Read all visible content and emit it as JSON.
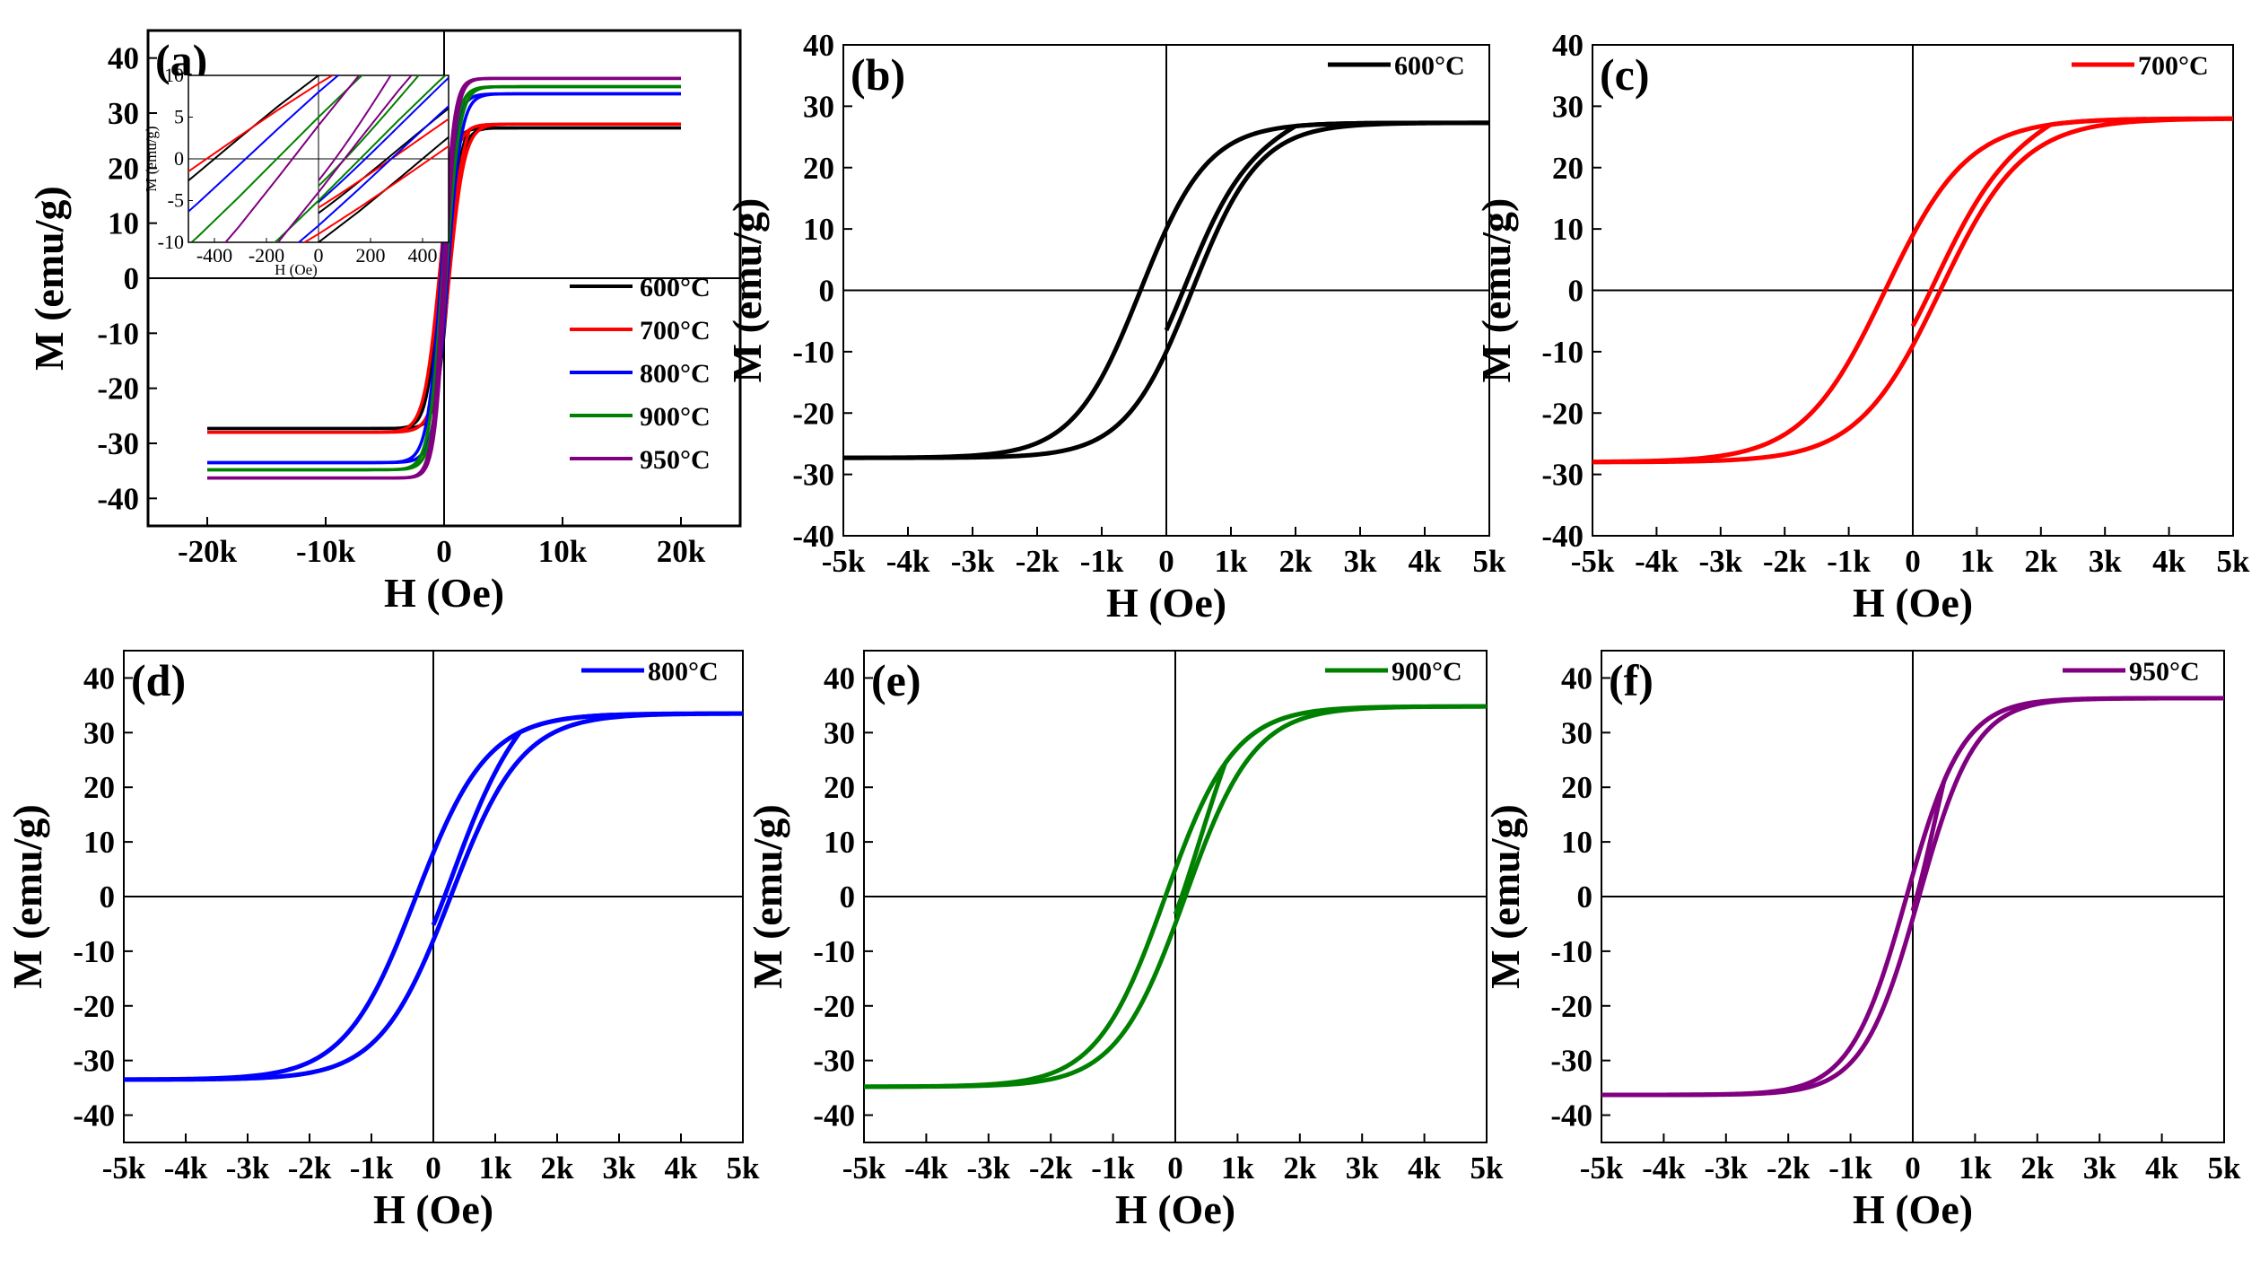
{
  "figure": {
    "panel_labels": [
      "(a)",
      "(b)",
      "(c)",
      "(d)",
      "(e)",
      "(f)"
    ],
    "xlabel": "H (Oe)",
    "ylabel": "M (emu/g)"
  },
  "colors": {
    "600": "#000000",
    "700": "#ff0000",
    "800": "#0000ff",
    "900": "#008000",
    "950": "#800080"
  },
  "chart_data": [
    {
      "panel": "(a)",
      "type": "line",
      "xlabel": "H (Oe)",
      "ylabel": "M (emu/g)",
      "xlim": [
        -25000,
        25000
      ],
      "ylim": [
        -45,
        45
      ],
      "xticks": [
        -20000,
        -10000,
        0,
        10000,
        20000
      ],
      "xtick_labels": [
        "-20k",
        "-10k",
        "0",
        "10k",
        "20k"
      ],
      "yticks": [
        -40,
        -30,
        -20,
        -10,
        0,
        10,
        20,
        30,
        40
      ],
      "ytick_labels": [
        "-40",
        "-30",
        "-20",
        "-10",
        "0",
        "10",
        "20",
        "30",
        "40"
      ],
      "legend_position": "bottom-right",
      "series": [
        {
          "name": "600°C",
          "color": "#000000",
          "Ms": 27.3,
          "Hc": 400,
          "Mr": 10,
          "hmax": 20000
        },
        {
          "name": "700°C",
          "color": "#ff0000",
          "Ms": 28.0,
          "Hc": 430,
          "Mr": 9,
          "hmax": 20000
        },
        {
          "name": "800°C",
          "color": "#0000ff",
          "Ms": 33.5,
          "Hc": 280,
          "Mr": 8,
          "hmax": 20000
        },
        {
          "name": "900°C",
          "color": "#008000",
          "Ms": 34.8,
          "Hc": 160,
          "Mr": 5,
          "hmax": 20000
        },
        {
          "name": "950°C",
          "color": "#800080",
          "Ms": 36.3,
          "Hc": 100,
          "Mr": 4,
          "hmax": 20000
        }
      ],
      "inset": {
        "xlabel": "H (Oe)",
        "ylabel": "M (emu/g)",
        "xlim": [
          -500,
          500
        ],
        "ylim": [
          -10,
          10
        ],
        "xticks": [
          -400,
          -200,
          0,
          200,
          400
        ],
        "xtick_labels": [
          "-400",
          "-200",
          "0",
          "200",
          "400"
        ],
        "yticks": [
          -10,
          -5,
          0,
          5,
          10
        ],
        "ytick_labels": [
          "-10",
          "-5",
          "0",
          "5",
          "10"
        ]
      }
    },
    {
      "panel": "(b)",
      "type": "line",
      "xlabel": "H (Oe)",
      "ylabel": "M (emu/g)",
      "xlim": [
        -5000,
        5000
      ],
      "ylim": [
        -40,
        40
      ],
      "xticks": [
        -5000,
        -4000,
        -3000,
        -2000,
        -1000,
        0,
        1000,
        2000,
        3000,
        4000,
        5000
      ],
      "xtick_labels": [
        "-5k",
        "-4k",
        "-3k",
        "-2k",
        "-1k",
        "0",
        "1k",
        "2k",
        "3k",
        "4k",
        "5k"
      ],
      "yticks": [
        -40,
        -30,
        -20,
        -10,
        0,
        10,
        20,
        30,
        40
      ],
      "ytick_labels": [
        "-40",
        "-30",
        "-20",
        "-10",
        "0",
        "10",
        "20",
        "30",
        "40"
      ],
      "legend_position": "top-right",
      "series": [
        {
          "name": "600°C",
          "color": "#000000",
          "Ms": 27.3,
          "Hc": 400,
          "Mr": 10,
          "hmax": 5000
        }
      ]
    },
    {
      "panel": "(c)",
      "type": "line",
      "xlabel": "H (Oe)",
      "ylabel": "M (emu/g)",
      "xlim": [
        -5000,
        5000
      ],
      "ylim": [
        -40,
        40
      ],
      "xticks": [
        -5000,
        -4000,
        -3000,
        -2000,
        -1000,
        0,
        1000,
        2000,
        3000,
        4000,
        5000
      ],
      "xtick_labels": [
        "-5k",
        "-4k",
        "-3k",
        "-2k",
        "-1k",
        "0",
        "1k",
        "2k",
        "3k",
        "4k",
        "5k"
      ],
      "yticks": [
        -40,
        -30,
        -20,
        -10,
        0,
        10,
        20,
        30,
        40
      ],
      "ytick_labels": [
        "-40",
        "-30",
        "-20",
        "-10",
        "0",
        "10",
        "20",
        "30",
        "40"
      ],
      "legend_position": "top-right",
      "series": [
        {
          "name": "700°C",
          "color": "#ff0000",
          "Ms": 28.0,
          "Hc": 430,
          "Mr": 9,
          "hmax": 5000
        }
      ]
    },
    {
      "panel": "(d)",
      "type": "line",
      "xlabel": "H (Oe)",
      "ylabel": "M (emu/g)",
      "xlim": [
        -5000,
        5000
      ],
      "ylim": [
        -45,
        45
      ],
      "xticks": [
        -5000,
        -4000,
        -3000,
        -2000,
        -1000,
        0,
        1000,
        2000,
        3000,
        4000,
        5000
      ],
      "xtick_labels": [
        "-5k",
        "-4k",
        "-3k",
        "-2k",
        "-1k",
        "0",
        "1k",
        "2k",
        "3k",
        "4k",
        "5k"
      ],
      "yticks": [
        -40,
        -30,
        -20,
        -10,
        0,
        10,
        20,
        30,
        40
      ],
      "ytick_labels": [
        "-40",
        "-30",
        "-20",
        "-10",
        "0",
        "10",
        "20",
        "30",
        "40"
      ],
      "legend_position": "top-right",
      "series": [
        {
          "name": "800°C",
          "color": "#0000ff",
          "Ms": 33.5,
          "Hc": 280,
          "Mr": 8,
          "hmax": 5000
        }
      ]
    },
    {
      "panel": "(e)",
      "type": "line",
      "xlabel": "H (Oe)",
      "ylabel": "M (emu/g)",
      "xlim": [
        -5000,
        5000
      ],
      "ylim": [
        -45,
        45
      ],
      "xticks": [
        -5000,
        -4000,
        -3000,
        -2000,
        -1000,
        0,
        1000,
        2000,
        3000,
        4000,
        5000
      ],
      "xtick_labels": [
        "-5k",
        "-4k",
        "-3k",
        "-2k",
        "-1k",
        "0",
        "1k",
        "2k",
        "3k",
        "4k",
        "5k"
      ],
      "yticks": [
        -40,
        -30,
        -20,
        -10,
        0,
        10,
        20,
        30,
        40
      ],
      "ytick_labels": [
        "-40",
        "-30",
        "-20",
        "-10",
        "0",
        "10",
        "20",
        "30",
        "40"
      ],
      "legend_position": "top-right",
      "series": [
        {
          "name": "900°C",
          "color": "#008000",
          "Ms": 34.8,
          "Hc": 160,
          "Mr": 5,
          "hmax": 5000
        }
      ]
    },
    {
      "panel": "(f)",
      "type": "line",
      "xlabel": "H (Oe)",
      "ylabel": "M (emu/g)",
      "xlim": [
        -5000,
        5000
      ],
      "ylim": [
        -45,
        45
      ],
      "xticks": [
        -5000,
        -4000,
        -3000,
        -2000,
        -1000,
        0,
        1000,
        2000,
        3000,
        4000,
        5000
      ],
      "xtick_labels": [
        "-5k",
        "-4k",
        "-3k",
        "-2k",
        "-1k",
        "0",
        "1k",
        "2k",
        "3k",
        "4k",
        "5k"
      ],
      "yticks": [
        -40,
        -30,
        -20,
        -10,
        0,
        10,
        20,
        30,
        40
      ],
      "ytick_labels": [
        "-40",
        "-30",
        "-20",
        "-10",
        "0",
        "10",
        "20",
        "30",
        "40"
      ],
      "legend_position": "top-right",
      "series": [
        {
          "name": "950°C",
          "color": "#800080",
          "Ms": 36.3,
          "Hc": 100,
          "Mr": 4,
          "hmax": 5000
        }
      ]
    }
  ]
}
